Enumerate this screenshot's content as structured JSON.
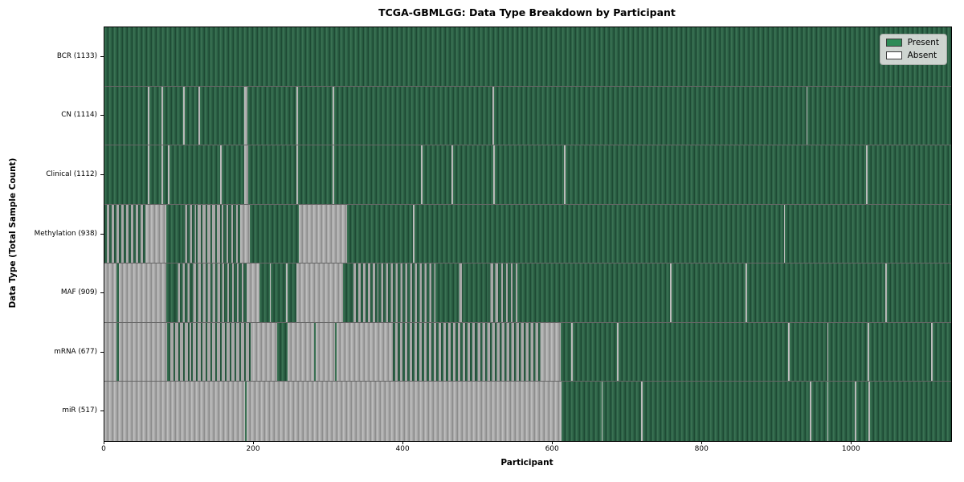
{
  "title": "TCGA-GBMLGG: Data Type Breakdown by Participant",
  "colors": {
    "present": "#2e8b57",
    "absent": "#ffffff",
    "bar_edge": "#222222",
    "legend_background": "#dcdedc"
  },
  "chart_data": {
    "type": "heatmap",
    "title": "TCGA-GBMLGG: Data Type Breakdown by Participant",
    "xlabel": "Participant",
    "ylabel": "Data Type (Total Sample Count)",
    "x_min": 0,
    "x_max": 1133,
    "x_ticks": [
      0,
      200,
      400,
      600,
      800,
      1000
    ],
    "grid": false,
    "legend_labels": [
      "Present",
      "Absent"
    ],
    "legend_position": "upper right",
    "segment_note": "segments are [start_participant, end_participant, state]; state 'p'=present, 'a'=absent, number=fraction present (interleaved thin bars)",
    "rows": [
      {
        "label": "BCR (1133)",
        "present_count": 1133,
        "segments": [
          [
            0,
            1133,
            "p"
          ]
        ]
      },
      {
        "label": "CN (1114)",
        "present_count": 1114,
        "segments": [
          [
            0,
            58,
            "p"
          ],
          [
            58,
            60,
            "a"
          ],
          [
            60,
            76,
            "p"
          ],
          [
            76,
            78,
            "a"
          ],
          [
            78,
            105,
            "p"
          ],
          [
            105,
            107,
            "a"
          ],
          [
            107,
            126,
            "p"
          ],
          [
            126,
            128,
            "a"
          ],
          [
            128,
            187,
            "p"
          ],
          [
            187,
            191,
            "a"
          ],
          [
            191,
            257,
            "p"
          ],
          [
            257,
            259,
            "a"
          ],
          [
            259,
            305,
            "p"
          ],
          [
            305,
            307,
            "a"
          ],
          [
            307,
            519,
            "p"
          ],
          [
            519,
            521,
            "a"
          ],
          [
            521,
            939,
            "p"
          ],
          [
            939,
            941,
            "a"
          ],
          [
            941,
            1133,
            "p"
          ]
        ]
      },
      {
        "label": "Clinical (1112)",
        "present_count": 1112,
        "segments": [
          [
            0,
            58,
            "p"
          ],
          [
            58,
            60,
            "a"
          ],
          [
            60,
            76,
            "p"
          ],
          [
            76,
            78,
            "a"
          ],
          [
            78,
            85,
            "p"
          ],
          [
            85,
            87,
            "a"
          ],
          [
            87,
            155,
            "p"
          ],
          [
            155,
            157,
            "a"
          ],
          [
            157,
            187,
            "p"
          ],
          [
            187,
            192,
            "a"
          ],
          [
            192,
            257,
            "p"
          ],
          [
            257,
            259,
            "a"
          ],
          [
            259,
            305,
            "p"
          ],
          [
            305,
            307,
            "a"
          ],
          [
            307,
            424,
            "p"
          ],
          [
            424,
            426,
            "a"
          ],
          [
            426,
            464,
            "p"
          ],
          [
            464,
            466,
            "a"
          ],
          [
            466,
            520,
            "p"
          ],
          [
            520,
            522,
            "a"
          ],
          [
            522,
            615,
            "p"
          ],
          [
            615,
            617,
            "a"
          ],
          [
            617,
            1019,
            "p"
          ],
          [
            1019,
            1021,
            "a"
          ],
          [
            1021,
            1133,
            "p"
          ]
        ]
      },
      {
        "label": "Methylation (938)",
        "present_count": 938,
        "segments": [
          [
            0,
            56,
            0.5
          ],
          [
            56,
            83,
            "a"
          ],
          [
            83,
            104,
            "p"
          ],
          [
            104,
            123,
            0.6
          ],
          [
            123,
            159,
            0.35
          ],
          [
            159,
            182,
            0.7
          ],
          [
            182,
            195,
            "a"
          ],
          [
            195,
            260,
            "p"
          ],
          [
            260,
            325,
            "a"
          ],
          [
            325,
            413,
            "p"
          ],
          [
            413,
            415,
            "a"
          ],
          [
            415,
            909,
            "p"
          ],
          [
            909,
            911,
            "a"
          ],
          [
            911,
            1133,
            "p"
          ]
        ]
      },
      {
        "label": "MAF (909)",
        "present_count": 909,
        "segments": [
          [
            0,
            16,
            "a"
          ],
          [
            16,
            19,
            "p"
          ],
          [
            19,
            83,
            "a"
          ],
          [
            83,
            95,
            "p"
          ],
          [
            95,
            116,
            0.6
          ],
          [
            116,
            160,
            0.4
          ],
          [
            160,
            191,
            0.7
          ],
          [
            191,
            207,
            "a"
          ],
          [
            207,
            221,
            "p"
          ],
          [
            221,
            223,
            "a"
          ],
          [
            223,
            243,
            "p"
          ],
          [
            243,
            245,
            "a"
          ],
          [
            245,
            257,
            "p"
          ],
          [
            257,
            319,
            "a"
          ],
          [
            319,
            330,
            "p"
          ],
          [
            330,
            367,
            0.5
          ],
          [
            367,
            443,
            0.55
          ],
          [
            443,
            472,
            "p"
          ],
          [
            472,
            480,
            0.4
          ],
          [
            480,
            514,
            "p"
          ],
          [
            514,
            527,
            0.4
          ],
          [
            527,
            552,
            0.7
          ],
          [
            552,
            757,
            "p"
          ],
          [
            757,
            759,
            "a"
          ],
          [
            759,
            858,
            "p"
          ],
          [
            858,
            860,
            "a"
          ],
          [
            860,
            1045,
            "p"
          ],
          [
            1045,
            1047,
            "a"
          ],
          [
            1047,
            1133,
            "p"
          ]
        ]
      },
      {
        "label": "mRNA (677)",
        "present_count": 677,
        "segments": [
          [
            0,
            16,
            "a"
          ],
          [
            16,
            19,
            "p"
          ],
          [
            19,
            84,
            "a"
          ],
          [
            84,
            86,
            "p"
          ],
          [
            86,
            116,
            0.35
          ],
          [
            116,
            199,
            0.3
          ],
          [
            199,
            231,
            "a"
          ],
          [
            231,
            245,
            "p"
          ],
          [
            245,
            281,
            "a"
          ],
          [
            281,
            283,
            "p"
          ],
          [
            283,
            309,
            "a"
          ],
          [
            309,
            311,
            "p"
          ],
          [
            311,
            386,
            "a"
          ],
          [
            386,
            497,
            0.5
          ],
          [
            497,
            585,
            0.4
          ],
          [
            585,
            611,
            "a"
          ],
          [
            611,
            625,
            "p"
          ],
          [
            625,
            627,
            "a"
          ],
          [
            627,
            686,
            "p"
          ],
          [
            686,
            688,
            "a"
          ],
          [
            688,
            915,
            "p"
          ],
          [
            915,
            917,
            "a"
          ],
          [
            917,
            967,
            "p"
          ],
          [
            967,
            969,
            "a"
          ],
          [
            969,
            1021,
            "p"
          ],
          [
            1021,
            1023,
            "a"
          ],
          [
            1023,
            1106,
            "p"
          ],
          [
            1106,
            1108,
            "a"
          ],
          [
            1108,
            1133,
            "p"
          ]
        ]
      },
      {
        "label": "miR (517)",
        "present_count": 517,
        "segments": [
          [
            0,
            188,
            "a"
          ],
          [
            188,
            190,
            "p"
          ],
          [
            190,
            612,
            "a"
          ],
          [
            612,
            665,
            "p"
          ],
          [
            665,
            667,
            "a"
          ],
          [
            667,
            718,
            "p"
          ],
          [
            718,
            720,
            "a"
          ],
          [
            720,
            944,
            "p"
          ],
          [
            944,
            946,
            "a"
          ],
          [
            946,
            967,
            "p"
          ],
          [
            967,
            969,
            "a"
          ],
          [
            969,
            1004,
            "p"
          ],
          [
            1004,
            1006,
            "a"
          ],
          [
            1006,
            1022,
            "p"
          ],
          [
            1022,
            1024,
            "a"
          ],
          [
            1024,
            1133,
            "p"
          ]
        ]
      }
    ]
  }
}
